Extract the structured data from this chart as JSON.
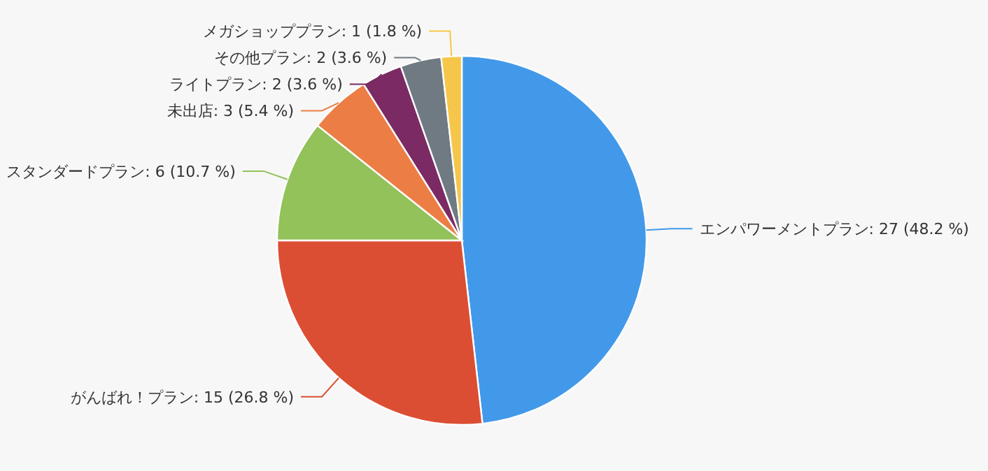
{
  "chart_data": {
    "type": "pie",
    "categories": [
      "エンパワーメントプラン",
      "がんばれ！プラン",
      "スタンダードプラン",
      "未出店",
      "ライトプラン",
      "その他プラン",
      "メガショッププラン"
    ],
    "values": [
      27,
      15,
      6,
      3,
      2,
      2,
      1
    ],
    "value_labels": [
      "27 (48.2 %)",
      "15 (26.8 %)",
      "6 (10.7 %)",
      "3 (5.4 %)",
      "2 (3.6 %)",
      "2 (3.6 %)",
      "1 (1.8 %)"
    ],
    "colors": [
      "#4299e9",
      "#dc4e33",
      "#93c15a",
      "#ec7e45",
      "#7b2a63",
      "#6f7a82",
      "#f5c64a"
    ]
  }
}
